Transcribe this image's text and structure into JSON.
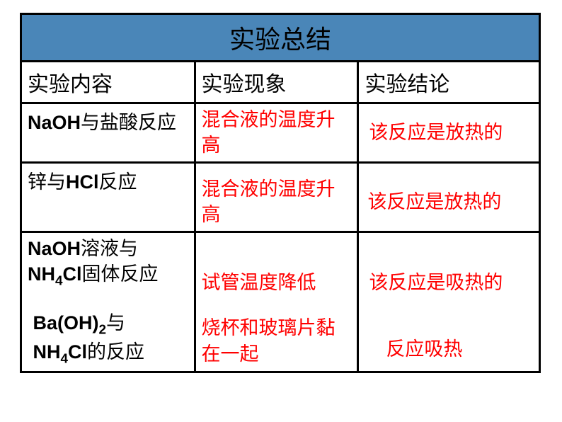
{
  "table": {
    "title": "实验总结",
    "colors": {
      "title_bg": "#4a86b8",
      "border": "#000000",
      "text_black": "#000000",
      "text_red": "#ff0000",
      "page_bg": "#ffffff"
    },
    "typography": {
      "title_fontsize": 36,
      "header_fontsize": 30,
      "cell_fontsize": 27
    },
    "columns": [
      "实验内容",
      "实验现象",
      "实验结论"
    ],
    "column_widths_pct": [
      33.5,
      31.5,
      35
    ],
    "rows": [
      {
        "content_parts": [
          {
            "t": "NaOH",
            "latin": true
          },
          {
            "t": "与盐酸反应"
          }
        ],
        "phenomenon": "混合液的温度升高",
        "conclusion": "该反应是放热的"
      },
      {
        "content_parts": [
          {
            "t": "锌与"
          },
          {
            "t": "HCl",
            "latin": true
          },
          {
            "t": "反应"
          }
        ],
        "phenomenon": "混合液的温度升高",
        "conclusion": "该反应是放热的"
      },
      {
        "content_a_parts": [
          {
            "t": "NaOH",
            "latin": true
          },
          {
            "t": "溶液与"
          },
          {
            "br": true
          },
          {
            "t": "NH",
            "latin": true
          },
          {
            "t": "4",
            "sub": true,
            "latin": true
          },
          {
            "t": "Cl",
            "latin": true
          },
          {
            "t": "固体反应"
          }
        ],
        "content_b_parts": [
          {
            "t": " Ba(OH)",
            "latin": true
          },
          {
            "t": "2",
            "sub": true,
            "latin": true
          },
          {
            "t": "与"
          },
          {
            "br": true
          },
          {
            "t": " NH",
            "latin": true
          },
          {
            "t": "4",
            "sub": true,
            "latin": true
          },
          {
            "t": "Cl",
            "latin": true
          },
          {
            "t": "的反应"
          }
        ],
        "phenomenon_a": "试管温度降低",
        "phenomenon_b": "烧杯和玻璃片黏在一起",
        "conclusion_a": "该反应是吸热的",
        "conclusion_b": "反应吸热"
      }
    ]
  }
}
